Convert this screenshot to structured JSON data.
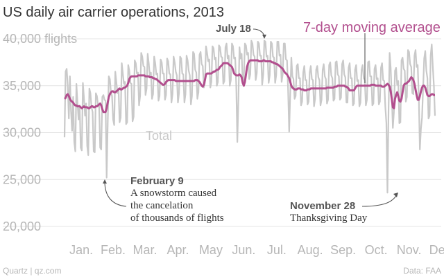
{
  "chart_data": {
    "type": "line",
    "title": "US daily air carrier operations, 2013",
    "yunit_label": "flights",
    "ylim": [
      18500,
      41000
    ],
    "yticks": [
      20000,
      25000,
      30000,
      35000,
      40000
    ],
    "ytick_labels": [
      "20,000",
      "25,000",
      "30,000",
      "35,000",
      "40,000"
    ],
    "months": [
      "Jan.",
      "Feb.",
      "Mar.",
      "Apr.",
      "May",
      "Jun.",
      "Jul.",
      "Aug.",
      "Sep.",
      "Oct.",
      "Nov.",
      "Dec."
    ],
    "grid": true,
    "series": [
      {
        "name": "Total",
        "color": "#c9c9c9",
        "values": [
          29500,
          36500,
          36800,
          35000,
          31500,
          36000,
          32300,
          30200,
          33800,
          29000,
          28000,
          35200,
          33200,
          31400,
          32900,
          28400,
          28100,
          35300,
          33700,
          31800,
          33100,
          28600,
          27600,
          34700,
          34200,
          32700,
          32200,
          28000,
          27900,
          34200,
          33900,
          33000,
          33000,
          28400,
          28200,
          33800,
          34000,
          33500,
          33400,
          25200,
          30900,
          36000,
          35700,
          34300,
          33900,
          31400,
          30800,
          36500,
          35400,
          34200,
          34700,
          31100,
          31600,
          37400,
          36300,
          35200,
          35400,
          30900,
          31100,
          37200,
          36600,
          35300,
          35200,
          31200,
          31700,
          37700,
          37400,
          36300,
          36400,
          32900,
          33900,
          38500,
          38100,
          37100,
          37000,
          34000,
          34700,
          38400,
          37400,
          36000,
          36400,
          33600,
          34100,
          38100,
          37400,
          36200,
          36300,
          33400,
          33900,
          37800,
          37500,
          36300,
          36300,
          33500,
          34000,
          37900,
          37600,
          36300,
          36200,
          33200,
          34100,
          38100,
          37500,
          36500,
          36100,
          33200,
          34200,
          38100,
          37900,
          36300,
          36200,
          33200,
          34100,
          38200,
          37700,
          36600,
          36100,
          33000,
          33900,
          38600,
          38400,
          36700,
          36400,
          33600,
          34300,
          38300,
          38600,
          37300,
          37100,
          34800,
          35300,
          39200,
          38500,
          37600,
          37800,
          34800,
          35400,
          39200,
          39000,
          37800,
          38000,
          35000,
          35400,
          39300,
          39100,
          38100,
          38000,
          35200,
          35500,
          39100,
          39500,
          37900,
          38200,
          35000,
          35600,
          39500,
          39200,
          37900,
          38000,
          35100,
          29000,
          33500,
          39100,
          37900,
          38400,
          35400,
          35600,
          39500,
          39300,
          38300,
          38500,
          35700,
          36200,
          39800,
          39500,
          38300,
          38100,
          35600,
          36300,
          39700,
          39500,
          38200,
          38200,
          35100,
          36200,
          39800,
          39700,
          38100,
          38200,
          35300,
          36100,
          39700,
          39500,
          38100,
          38000,
          35300,
          36100,
          39700,
          39700,
          38200,
          38300,
          35400,
          36200,
          39500,
          39500,
          37800,
          37700,
          34600,
          30100,
          34200,
          38000,
          36000,
          35700,
          33600,
          33900,
          37100,
          37300,
          35800,
          35800,
          32900,
          33300,
          36400,
          37100,
          35600,
          35600,
          33000,
          33300,
          36400,
          37100,
          35700,
          35600,
          32800,
          33600,
          36700,
          37100,
          35900,
          35600,
          32900,
          33500,
          36700,
          37300,
          36000,
          35700,
          33100,
          33500,
          37200,
          37500,
          36100,
          35800,
          33400,
          33600,
          37500,
          37600,
          36200,
          36000,
          33500,
          33700,
          37300,
          37700,
          36200,
          35900,
          33200,
          33200,
          36900,
          37400,
          35800,
          35800,
          32900,
          33100,
          36700,
          37200,
          35500,
          35600,
          32800,
          33200,
          36700,
          37200,
          35800,
          35600,
          32900,
          33500,
          37500,
          37600,
          36000,
          36000,
          32900,
          33100,
          36800,
          37200,
          35700,
          35800,
          33000,
          33300,
          36900,
          37400,
          35600,
          35500,
          32800,
          31000,
          23600,
          32300,
          38500,
          36900,
          33800,
          30500,
          32200,
          36600,
          36900,
          35100,
          35500,
          31000,
          31100,
          37700,
          38000,
          36800,
          36600,
          33300,
          33800,
          38800,
          38600,
          37300,
          37000,
          34200,
          34100,
          38200,
          38800,
          37000,
          37200,
          33900,
          28200,
          30400,
          31600,
          34700,
          37900,
          38700,
          36600,
          35800,
          31500,
          31800,
          38200,
          39400,
          37000,
          35000,
          31800
        ]
      },
      {
        "name": "7-day moving average",
        "color": "#b24f8e",
        "values": [
          33600,
          33700,
          34000,
          34100,
          33900,
          33600,
          33400,
          33300,
          33200,
          33000,
          32900,
          32900,
          32800,
          32800,
          32800,
          32700,
          32600,
          32700,
          32800,
          32700,
          32700,
          32700,
          32600,
          32600,
          32700,
          32800,
          32800,
          32700,
          32700,
          32800,
          32800,
          32900,
          33000,
          33100,
          32900,
          32500,
          32200,
          32200,
          32200,
          32600,
          33200,
          33800,
          34100,
          34300,
          34400,
          34400,
          34300,
          34300,
          34400,
          34500,
          34600,
          34700,
          34600,
          34600,
          34700,
          34800,
          34800,
          34900,
          35000,
          35300,
          35700,
          35900,
          36000,
          36000,
          36000,
          36000,
          36000,
          36000,
          36100,
          36100,
          36100,
          36100,
          36100,
          36100,
          36100,
          36000,
          36000,
          36000,
          36000,
          35900,
          35900,
          35900,
          35800,
          35800,
          35700,
          35700,
          35600,
          35500,
          35400,
          35300,
          35200,
          35100,
          35100,
          35200,
          35400,
          35500,
          35600,
          35600,
          35600,
          35600,
          35600,
          35600,
          35600,
          35500,
          35500,
          35500,
          35500,
          35500,
          35500,
          35500,
          35500,
          35500,
          35500,
          35500,
          35500,
          35500,
          35500,
          35500,
          35500,
          35500,
          35500,
          35600,
          35600,
          35600,
          35500,
          35400,
          35200,
          35000,
          34900,
          35100,
          35600,
          36200,
          36300,
          36300,
          36300,
          36300,
          36300,
          36400,
          36500,
          36500,
          36600,
          36700,
          36700,
          36800,
          37000,
          37100,
          37200,
          37400,
          37400,
          37400,
          37400,
          37400,
          37300,
          37200,
          37100,
          37000,
          36700,
          36300,
          36200,
          36100,
          36100,
          36100,
          36200,
          36100,
          35900,
          35300,
          35000,
          35400,
          36200,
          37000,
          37400,
          37600,
          37700,
          37700,
          37700,
          37700,
          37700,
          37700,
          37700,
          37700,
          37600,
          37600,
          37600,
          37600,
          37700,
          37700,
          37600,
          37600,
          37600,
          37600,
          37600,
          37600,
          37500,
          37500,
          37400,
          37400,
          37300,
          37300,
          37200,
          37100,
          37000,
          36900,
          36800,
          36600,
          36400,
          36300,
          36200,
          36000,
          35800,
          35400,
          35000,
          34800,
          34700,
          34600,
          34600,
          34600,
          34700,
          34700,
          34700,
          34600,
          34600,
          34600,
          34500,
          34500,
          34500,
          34600,
          34600,
          34600,
          34700,
          34700,
          34700,
          34700,
          34700,
          34700,
          34700,
          34700,
          34700,
          34700,
          34700,
          34700,
          34700,
          34700,
          34700,
          34800,
          34800,
          34800,
          34800,
          34800,
          34800,
          34800,
          34900,
          34900,
          34900,
          35000,
          35000,
          35000,
          35000,
          35000,
          35000,
          35000,
          34900,
          34900,
          34800,
          34700,
          34500,
          34500,
          34500,
          34500,
          34500,
          34700,
          34900,
          35000,
          35000,
          35000,
          35000,
          35000,
          35000,
          35000,
          35000,
          35000,
          35000,
          35000,
          35000,
          35000,
          35100,
          35100,
          35100,
          35100,
          35000,
          35000,
          35000,
          35000,
          35000,
          35000,
          34900,
          34900,
          34900,
          35000,
          35100,
          35200,
          35100,
          34900,
          34400,
          33600,
          32700,
          32600,
          33600,
          34000,
          34300,
          33900,
          33400,
          33300,
          33600,
          34300,
          35000,
          35200,
          35200,
          35300,
          35400,
          35500,
          35700,
          35900,
          35800,
          35600,
          35200,
          34600,
          34000,
          33500,
          33500,
          33900,
          34400,
          34800,
          35000,
          35000,
          34800,
          34400,
          34000,
          33900,
          33900,
          34000,
          34100,
          34100,
          34000,
          34000
        ]
      }
    ],
    "annotations": [
      {
        "id": "july18",
        "title": "July 18",
        "lines": []
      },
      {
        "id": "feb9",
        "title": "February 9",
        "lines": [
          "A snowstorm caused",
          "the cancelation",
          "of thousands of flights"
        ]
      },
      {
        "id": "nov28",
        "title": "November 28",
        "lines": [
          "Thanksgiving Day"
        ]
      }
    ],
    "source": "Data: FAA",
    "credit": "Quartz | qz.com"
  }
}
